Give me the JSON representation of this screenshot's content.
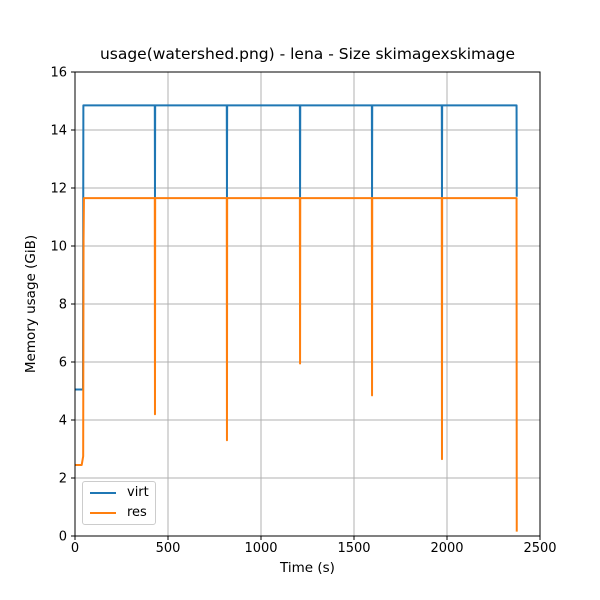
{
  "chart_data": {
    "type": "line",
    "title": "usage(watershed.png) - lena - Size skimagexskimage",
    "xlabel": "Time (s)",
    "ylabel": "Memory usage (GiB)",
    "xlim": [
      0,
      2500
    ],
    "ylim": [
      0,
      16
    ],
    "xticks": [
      0,
      500,
      1000,
      1500,
      2000,
      2500
    ],
    "yticks": [
      0,
      2,
      4,
      6,
      8,
      10,
      12,
      14,
      16
    ],
    "grid": true,
    "colors": {
      "grid": "#b0b0b0",
      "axis": "#000000",
      "background": "#ffffff",
      "virt": "#1f77b4",
      "res": "#ff7f0e"
    },
    "legend": {
      "position": "lower left",
      "entries": [
        "virt",
        "res"
      ]
    },
    "series": [
      {
        "name": "virt",
        "color": "#1f77b4",
        "points": [
          [
            0,
            5.05
          ],
          [
            43,
            5.05
          ],
          [
            45,
            14.85
          ],
          [
            429,
            14.85
          ],
          [
            430,
            11.7
          ],
          [
            431,
            14.85
          ],
          [
            816,
            14.85
          ],
          [
            817,
            11.7
          ],
          [
            818,
            14.85
          ],
          [
            1209,
            14.85
          ],
          [
            1210,
            11.7
          ],
          [
            1211,
            14.85
          ],
          [
            1596,
            14.85
          ],
          [
            1597,
            11.7
          ],
          [
            1598,
            14.85
          ],
          [
            1972,
            14.85
          ],
          [
            1973,
            11.7
          ],
          [
            1974,
            14.85
          ],
          [
            2374,
            14.85
          ],
          [
            2375,
            11.7
          ]
        ]
      },
      {
        "name": "res",
        "color": "#ff7f0e",
        "points": [
          [
            0,
            2.45
          ],
          [
            36,
            2.45
          ],
          [
            44,
            2.75
          ],
          [
            45,
            7.0
          ],
          [
            46,
            10.2
          ],
          [
            48,
            11.65
          ],
          [
            429,
            11.65
          ],
          [
            430,
            4.2
          ],
          [
            431,
            11.65
          ],
          [
            816,
            11.65
          ],
          [
            817,
            3.3
          ],
          [
            818,
            11.65
          ],
          [
            1209,
            11.65
          ],
          [
            1210,
            5.95
          ],
          [
            1211,
            11.65
          ],
          [
            1596,
            11.65
          ],
          [
            1597,
            4.85
          ],
          [
            1598,
            11.65
          ],
          [
            1972,
            11.65
          ],
          [
            1973,
            2.65
          ],
          [
            1974,
            11.65
          ],
          [
            2374,
            11.65
          ],
          [
            2375,
            0.15
          ]
        ]
      }
    ]
  }
}
